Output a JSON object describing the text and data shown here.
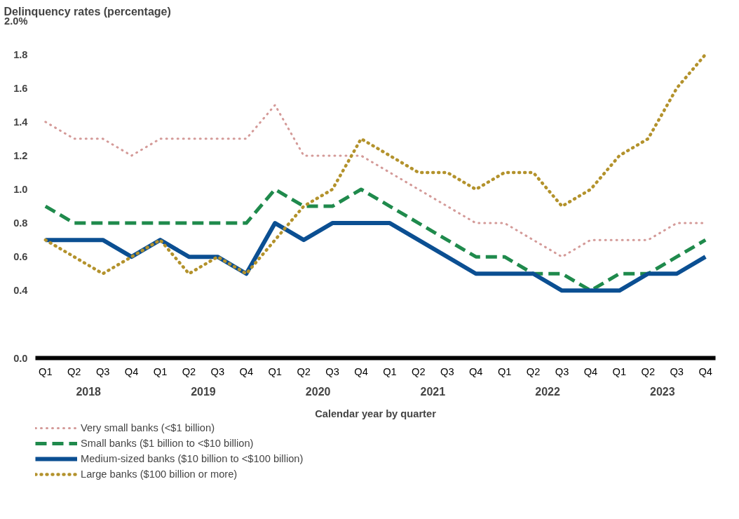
{
  "chart_data": {
    "type": "line",
    "title": "Delinquency rates",
    "subtitle": "(percentage)",
    "xlabel": "Calendar year by quarter",
    "categories": [
      "Q1",
      "Q2",
      "Q3",
      "Q4",
      "Q1",
      "Q2",
      "Q3",
      "Q4",
      "Q1",
      "Q2",
      "Q3",
      "Q4",
      "Q1",
      "Q2",
      "Q3",
      "Q4",
      "Q1",
      "Q2",
      "Q3",
      "Q4",
      "Q1",
      "Q2",
      "Q3",
      "Q4"
    ],
    "ylim": [
      0.0,
      2.0
    ],
    "yticks": [
      {
        "value": 0.0,
        "label": "0.0"
      },
      0.4,
      0.6,
      0.8,
      {
        "value": 1.0,
        "label": "1.0"
      },
      1.2,
      1.4,
      1.6,
      1.8,
      {
        "value": 2.0,
        "label": "2.0%"
      }
    ],
    "annotations": [
      "2018",
      "2019",
      "2020",
      "2021",
      "2022",
      "2023"
    ],
    "grid": false,
    "legend": "bottom",
    "series": [
      {
        "name": "Very small banks (<$1 billion)",
        "color": "#d49a98",
        "line_style": "dotted",
        "values": [
          1.4,
          1.3,
          1.3,
          1.2,
          1.3,
          1.3,
          1.3,
          1.3,
          1.5,
          1.2,
          1.2,
          1.2,
          1.1,
          1.0,
          0.9,
          0.8,
          0.8,
          0.7,
          0.6,
          0.7,
          0.7,
          0.7,
          0.8,
          0.8
        ]
      },
      {
        "name": "Small banks ($1 billion to <$10 billion)",
        "color": "#1f8a4c",
        "line_style": "dashed",
        "values": [
          0.9,
          0.8,
          0.8,
          0.8,
          0.8,
          0.8,
          0.8,
          0.8,
          1.0,
          0.9,
          0.9,
          1.0,
          0.9,
          0.8,
          0.7,
          0.6,
          0.6,
          0.5,
          0.5,
          0.4,
          0.5,
          0.5,
          0.6,
          0.7
        ]
      },
      {
        "name": "Medium-sized banks ($10 billion to <$100 billion)",
        "color": "#0b4f92",
        "line_style": "solid",
        "values": [
          0.7,
          0.7,
          0.7,
          0.6,
          0.7,
          0.6,
          0.6,
          0.5,
          0.8,
          0.7,
          0.8,
          0.8,
          0.8,
          0.7,
          0.6,
          0.5,
          0.5,
          0.5,
          0.4,
          0.4,
          0.4,
          0.5,
          0.5,
          0.6
        ]
      },
      {
        "name": "Large banks ($100 billion or more)",
        "color": "#b3922c",
        "line_style": "dotted",
        "values": [
          0.7,
          0.6,
          0.5,
          0.6,
          0.7,
          0.5,
          0.6,
          0.5,
          0.7,
          0.9,
          1.0,
          1.3,
          1.2,
          1.1,
          1.1,
          1.0,
          1.1,
          1.1,
          0.9,
          1.0,
          1.2,
          1.3,
          1.6,
          1.8
        ]
      }
    ]
  }
}
